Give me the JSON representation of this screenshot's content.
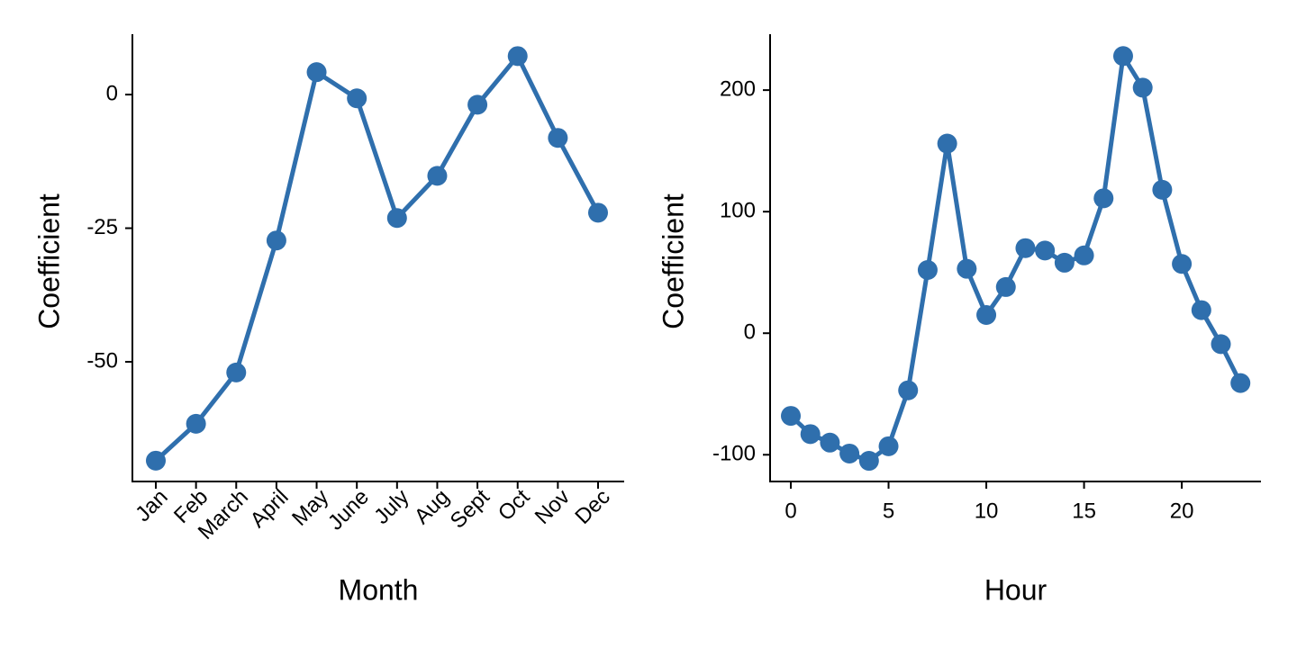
{
  "chart_data": [
    {
      "type": "line",
      "x_label": "Month",
      "y_label": "Coefficient",
      "categories": [
        "Jan",
        "Feb",
        "March",
        "April",
        "May",
        "June",
        "July",
        "Aug",
        "Sept",
        "Oct",
        "Nov",
        "Dec"
      ],
      "series": [
        {
          "color": "#2f6fad",
          "values": [
            -68.5,
            -61.6,
            -52.0,
            -27.3,
            4.2,
            -0.7,
            -23.1,
            -15.2,
            -1.9,
            7.2,
            -8.1,
            -22.1
          ]
        }
      ],
      "ylim": [
        -72.4,
        11.3
      ],
      "yticks": [
        -50,
        -25,
        0
      ]
    },
    {
      "type": "line",
      "x_label": "Hour",
      "y_label": "Coefficient",
      "x": [
        0,
        1,
        2,
        3,
        4,
        5,
        6,
        7,
        8,
        9,
        10,
        11,
        12,
        13,
        14,
        15,
        16,
        17,
        18,
        19,
        20,
        21,
        22,
        23
      ],
      "series": [
        {
          "color": "#2f6fad",
          "values": [
            -68,
            -83,
            -90,
            -99,
            -105,
            -93,
            -47,
            52,
            156,
            53,
            15,
            38,
            70,
            68,
            58,
            64,
            111,
            228,
            202,
            118,
            57,
            19,
            -9,
            -41
          ]
        }
      ],
      "xlim": [
        -1.06,
        24.05
      ],
      "xticks": [
        0,
        5,
        10,
        15,
        20
      ],
      "ylim": [
        -122,
        246
      ],
      "yticks": [
        -100,
        0,
        100,
        200
      ]
    }
  ]
}
